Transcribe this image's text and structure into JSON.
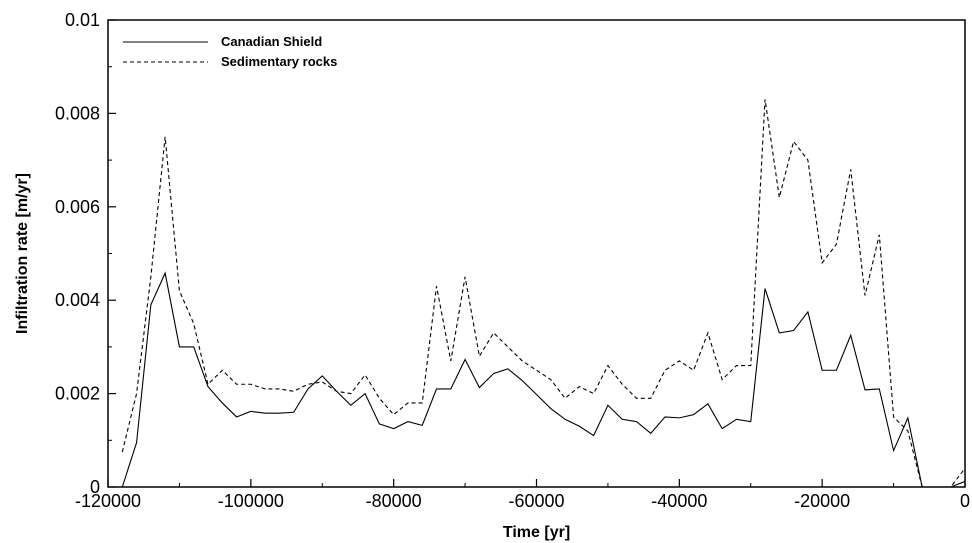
{
  "chart_data": {
    "type": "line",
    "xlabel": "Time [yr]",
    "ylabel": "Infiltration rate [m/yr]",
    "xlim": [
      -120000,
      0
    ],
    "ylim": [
      0,
      0.01
    ],
    "x_ticks": [
      -120000,
      -100000,
      -80000,
      -60000,
      -40000,
      -20000,
      0
    ],
    "x_tick_labels": [
      "-120000",
      "-100000",
      "-80000",
      "-60000",
      "-40000",
      "-20000",
      "0"
    ],
    "y_ticks": [
      0,
      0.002,
      0.004,
      0.006,
      0.008,
      0.01
    ],
    "y_tick_labels": [
      "0",
      "0.002",
      "0.004",
      "0.006",
      "0.008",
      "0.01"
    ],
    "grid": false,
    "legend_position": "top-left",
    "series": [
      {
        "name": "Canadian Shield",
        "line_style": "solid",
        "color": "#000000",
        "x": [
          -118000,
          -116000,
          -114000,
          -112000,
          -110000,
          -108000,
          -106000,
          -104000,
          -102000,
          -100000,
          -98000,
          -96000,
          -94000,
          -92000,
          -90000,
          -88000,
          -86000,
          -84000,
          -82000,
          -80000,
          -78000,
          -76000,
          -74000,
          -72000,
          -70000,
          -68000,
          -66000,
          -64000,
          -62000,
          -60000,
          -58000,
          -56000,
          -54000,
          -52000,
          -50000,
          -48000,
          -46000,
          -44000,
          -42000,
          -40000,
          -38000,
          -36000,
          -34000,
          -32000,
          -30000,
          -28000,
          -26000,
          -24000,
          -22000,
          -20000,
          -18000,
          -16000,
          -14000,
          -12000,
          -10000,
          -8000,
          -6000,
          -4000,
          -2000,
          0
        ],
        "y": [
          0.0,
          0.00095,
          0.0039,
          0.00458,
          0.003,
          0.003,
          0.00215,
          0.0018,
          0.0015,
          0.00162,
          0.00158,
          0.00158,
          0.0016,
          0.0021,
          0.00238,
          0.00205,
          0.00175,
          0.002,
          0.00135,
          0.00125,
          0.0014,
          0.00132,
          0.0021,
          0.0021,
          0.00273,
          0.00213,
          0.00243,
          0.00253,
          0.00228,
          0.00198,
          0.00168,
          0.00145,
          0.0013,
          0.0011,
          0.00175,
          0.00145,
          0.0014,
          0.00115,
          0.0015,
          0.00148,
          0.00155,
          0.00178,
          0.00125,
          0.00145,
          0.0014,
          0.00425,
          0.0033,
          0.00335,
          0.00375,
          0.0025,
          0.0025,
          0.00325,
          0.00208,
          0.0021,
          0.00078,
          0.00148,
          0.0,
          0.0,
          0.0,
          0.00012
        ]
      },
      {
        "name": "Sedimentary rocks",
        "line_style": "dashed",
        "color": "#000000",
        "x": [
          -118000,
          -116000,
          -114000,
          -112000,
          -110000,
          -108000,
          -106000,
          -104000,
          -102000,
          -100000,
          -98000,
          -96000,
          -94000,
          -92000,
          -90000,
          -88000,
          -86000,
          -84000,
          -82000,
          -80000,
          -78000,
          -76000,
          -74000,
          -72000,
          -70000,
          -68000,
          -66000,
          -64000,
          -62000,
          -60000,
          -58000,
          -56000,
          -54000,
          -52000,
          -50000,
          -48000,
          -46000,
          -44000,
          -42000,
          -40000,
          -38000,
          -36000,
          -34000,
          -32000,
          -30000,
          -28000,
          -26000,
          -24000,
          -22000,
          -20000,
          -18000,
          -16000,
          -14000,
          -12000,
          -10000,
          -8000,
          -6000,
          -4000,
          -2000,
          0
        ],
        "y": [
          0.00075,
          0.002,
          0.0045,
          0.0075,
          0.0042,
          0.0035,
          0.0022,
          0.0025,
          0.0022,
          0.0022,
          0.0021,
          0.0021,
          0.00205,
          0.0022,
          0.00225,
          0.00205,
          0.002,
          0.0024,
          0.0019,
          0.00155,
          0.0018,
          0.0018,
          0.0043,
          0.0027,
          0.0045,
          0.0028,
          0.0033,
          0.003,
          0.0027,
          0.0025,
          0.0023,
          0.0019,
          0.00215,
          0.002,
          0.0026,
          0.0022,
          0.0019,
          0.0019,
          0.0025,
          0.0027,
          0.0025,
          0.0033,
          0.0023,
          0.0026,
          0.0026,
          0.0083,
          0.0062,
          0.0074,
          0.007,
          0.0048,
          0.0052,
          0.0068,
          0.0041,
          0.0054,
          0.0015,
          0.0012,
          0.0,
          0.0,
          0.0,
          0.0004
        ]
      }
    ]
  }
}
